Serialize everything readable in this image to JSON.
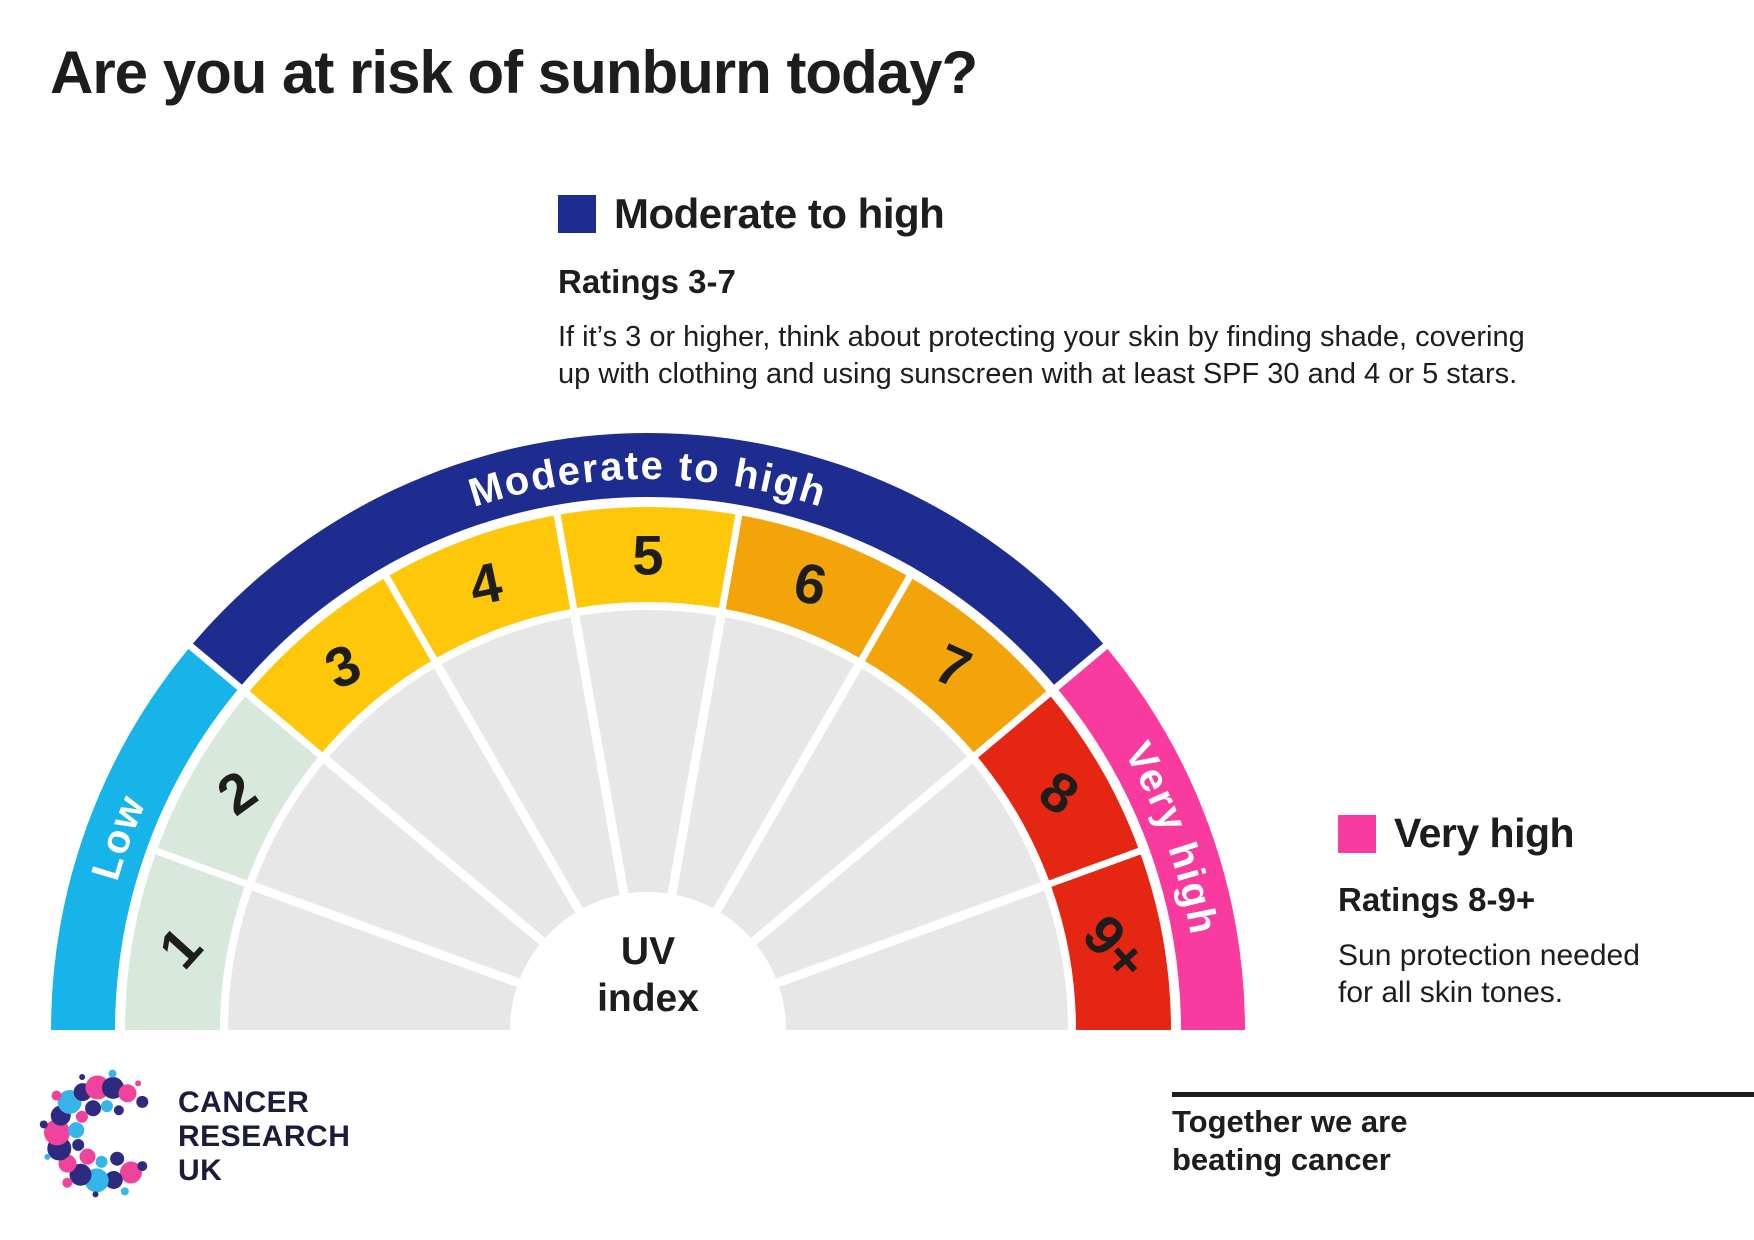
{
  "title": "Are you at risk of sunburn today?",
  "text_color": "#1d1d1b",
  "legend_moderate": {
    "heading": "Moderate to high",
    "swatch_color": "#1e2b8f",
    "subheading": "Ratings 3-7",
    "body_lines": [
      "If it’s 3 or higher, think about protecting your skin by finding shade, covering",
      "up with clothing and using sunscreen with at least SPF 30 and 4 or 5 stars."
    ]
  },
  "legend_very_high": {
    "heading": "Very high",
    "swatch_color": "#f93a9f",
    "subheading": "Ratings 8-9+",
    "body_lines": [
      "Sun protection needed",
      "for all skin tones."
    ]
  },
  "chart_data": {
    "type": "pie",
    "title": "UV index",
    "description": "Semicircular UV index gauge with 9 wedges of equal angle (20 degrees each) and three outer category arcs",
    "categories": [
      "1",
      "2",
      "3",
      "4",
      "5",
      "6",
      "7",
      "8",
      "9+"
    ],
    "values": [
      1,
      1,
      1,
      1,
      1,
      1,
      1,
      1,
      1
    ],
    "legend_entries": [
      "Low (1-2)",
      "Moderate to high (3-7)",
      "Very high (8-9+)"
    ]
  },
  "gauge": {
    "center_label": {
      "line1": "UV",
      "line2": "index"
    },
    "inner_wedge_color": "#e7e7e7",
    "label_color": "#ffffff",
    "number_color": "#1d1d1b",
    "categories": [
      {
        "label": "Low",
        "color": "#17b4e9",
        "start_deg": 180,
        "end_deg": 140
      },
      {
        "label": "Moderate to high",
        "color": "#1e2b8f",
        "start_deg": 140,
        "end_deg": 40
      },
      {
        "label": "Very high",
        "color": "#f93a9f",
        "start_deg": 40,
        "end_deg": 0
      }
    ],
    "segments": [
      {
        "label": "1",
        "color": "#d8e8dd"
      },
      {
        "label": "2",
        "color": "#d8e8dd"
      },
      {
        "label": "3",
        "color": "#fec70a"
      },
      {
        "label": "4",
        "color": "#fec70a"
      },
      {
        "label": "5",
        "color": "#fec70a"
      },
      {
        "label": "6",
        "color": "#f2a40a"
      },
      {
        "label": "7",
        "color": "#f2a40a"
      },
      {
        "label": "8",
        "color": "#e52613"
      },
      {
        "label": "9+",
        "color": "#e52613"
      }
    ]
  },
  "footer": {
    "logo": {
      "lines": [
        "CANCER",
        "RESEARCH",
        "UK"
      ],
      "text_color": "#1b1b3a",
      "dot_colors": {
        "navy": "#2d2a80",
        "pink": "#f0439c",
        "cyan": "#35b5e9"
      }
    },
    "tagline": {
      "line1": "Together we are",
      "line2": "beating cancer"
    }
  }
}
